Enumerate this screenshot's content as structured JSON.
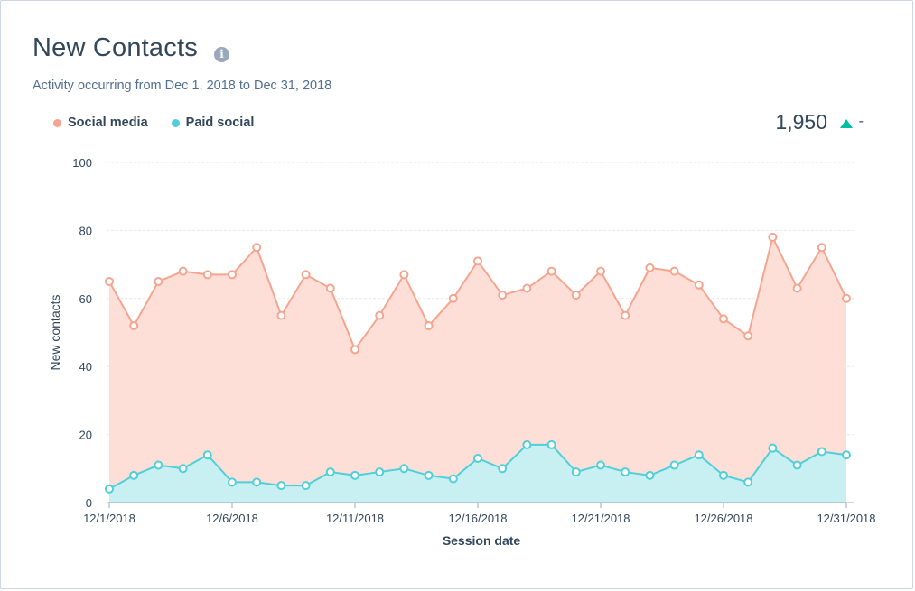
{
  "card": {
    "title": "New Contacts",
    "info_icon": "info-icon",
    "subtitle": "Activity occurring from Dec 1, 2018 to Dec 31, 2018",
    "total": "1,950",
    "trend_suffix": "-"
  },
  "chart_data": {
    "type": "area",
    "xlabel": "Session date",
    "ylabel": "New contacts",
    "ylim": [
      0,
      100
    ],
    "yticks": [
      0,
      20,
      40,
      60,
      80,
      100
    ],
    "x": [
      "12/1/2018",
      "12/2/2018",
      "12/3/2018",
      "12/4/2018",
      "12/5/2018",
      "12/6/2018",
      "12/7/2018",
      "12/8/2018",
      "12/9/2018",
      "12/10/2018",
      "12/11/2018",
      "12/12/2018",
      "12/13/2018",
      "12/14/2018",
      "12/15/2018",
      "12/16/2018",
      "12/17/2018",
      "12/18/2018",
      "12/19/2018",
      "12/20/2018",
      "12/21/2018",
      "12/22/2018",
      "12/23/2018",
      "12/24/2018",
      "12/25/2018",
      "12/26/2018",
      "12/27/2018",
      "12/28/2018",
      "12/29/2018",
      "12/30/2018",
      "12/31/2018"
    ],
    "xtick_labels": [
      "12/1/2018",
      "12/6/2018",
      "12/11/2018",
      "12/16/2018",
      "12/21/2018",
      "12/26/2018",
      "12/31/2018"
    ],
    "xtick_index": [
      0,
      5,
      10,
      15,
      20,
      25,
      30
    ],
    "grid": true,
    "legend_position": "top-left",
    "series": [
      {
        "name": "Social media",
        "color": "#f5a58f",
        "fill": "#fddfd7",
        "values": [
          65,
          52,
          65,
          68,
          67,
          67,
          75,
          55,
          67,
          63,
          45,
          55,
          67,
          52,
          60,
          71,
          61,
          63,
          68,
          61,
          68,
          55,
          69,
          68,
          64,
          54,
          49,
          78,
          63,
          75,
          60
        ]
      },
      {
        "name": "Paid social",
        "color": "#4fd0d9",
        "fill": "#c8f0f2",
        "values": [
          4,
          8,
          11,
          10,
          14,
          6,
          6,
          5,
          5,
          9,
          8,
          9,
          10,
          8,
          7,
          13,
          10,
          17,
          17,
          9,
          11,
          9,
          8,
          11,
          14,
          8,
          6,
          16,
          11,
          15,
          14
        ]
      }
    ]
  }
}
